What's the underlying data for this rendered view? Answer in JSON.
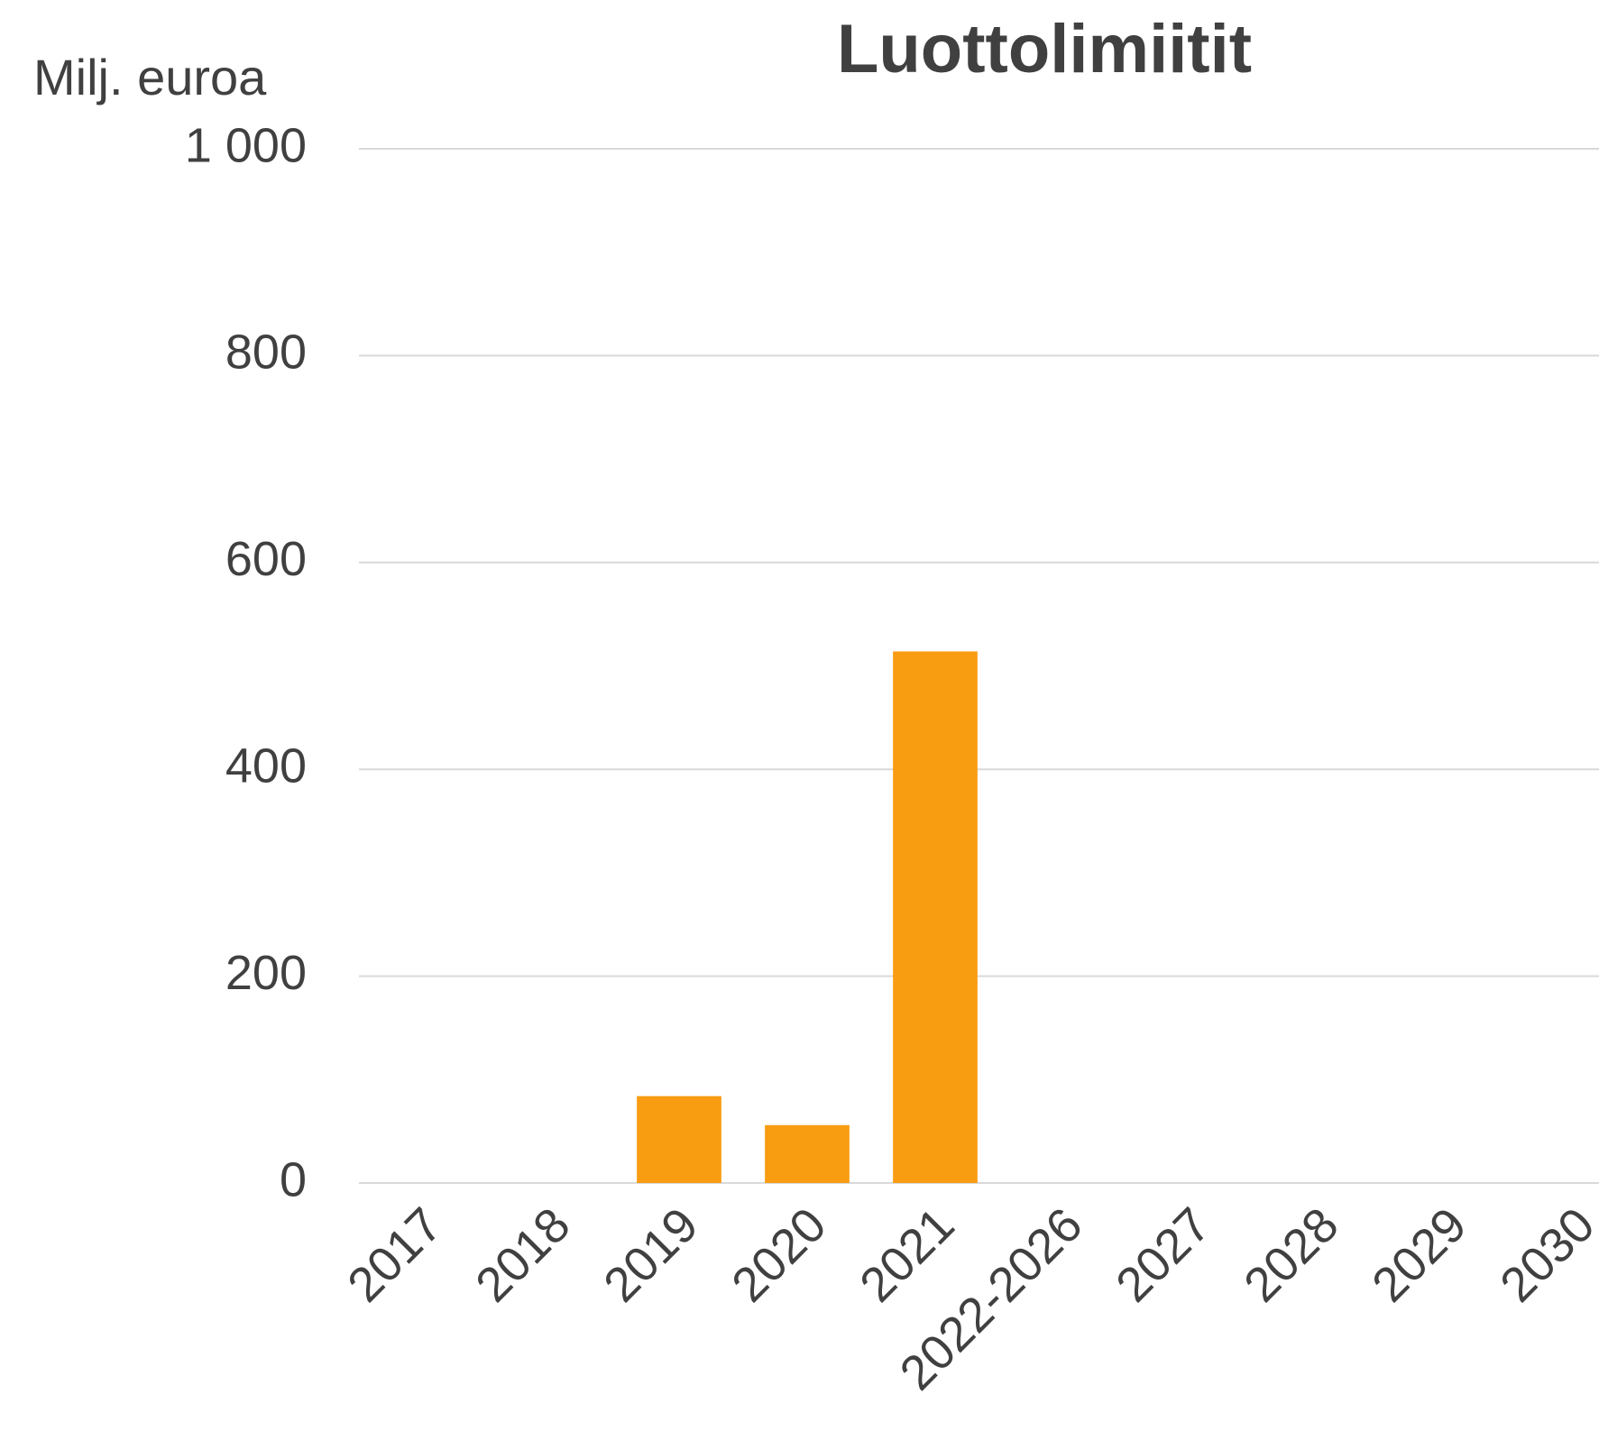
{
  "chart_data": {
    "type": "bar",
    "title": "Luottolimiitit",
    "y_label": "Milj. euroa",
    "categories": [
      "2017",
      "2018",
      "2019",
      "2020",
      "2021",
      "2022-2026",
      "2027",
      "2028",
      "2029",
      "2030"
    ],
    "values": [
      0,
      0,
      84,
      56,
      514,
      0,
      0,
      0,
      0,
      0
    ],
    "color": "#f89c12",
    "ylim": [
      0,
      1000
    ],
    "yticks": [
      0,
      200,
      400,
      600,
      800,
      {
        "value": 1000,
        "label": "1 000"
      }
    ],
    "grid": true
  }
}
